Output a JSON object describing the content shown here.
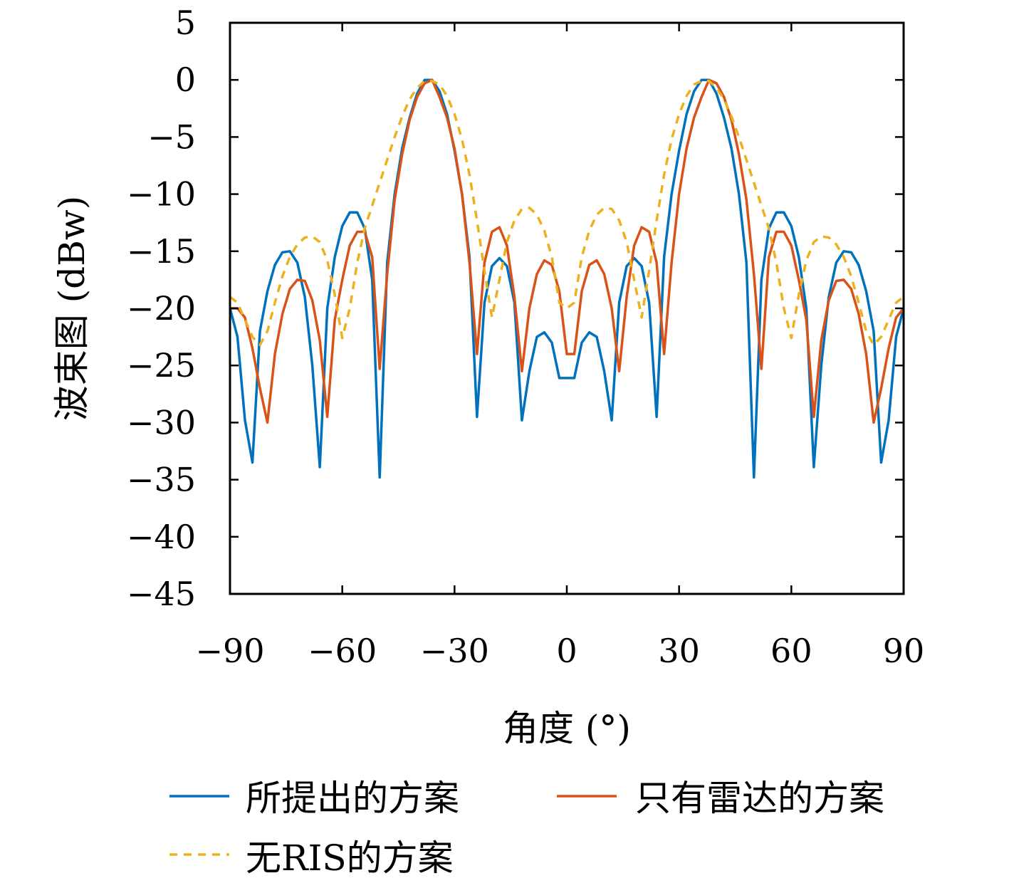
{
  "chart_data": {
    "type": "line",
    "xlabel": "角度 (°)",
    "ylabel": "波束图 (dBw)",
    "xlim": [
      -90,
      90
    ],
    "ylim": [
      -45,
      5
    ],
    "xticks": [
      -90,
      -60,
      -30,
      0,
      30,
      60,
      90
    ],
    "xtick_labels": [
      "−90",
      "−60",
      "−30",
      "0",
      "30",
      "60",
      "90"
    ],
    "yticks": [
      5,
      0,
      -5,
      -10,
      -15,
      -20,
      -25,
      -30,
      -35,
      -40,
      -45
    ],
    "ytick_labels": [
      "5",
      "0",
      "−5",
      "−10",
      "−15",
      "−20",
      "−25",
      "−30",
      "−35",
      "−40",
      "−45"
    ],
    "grid": false,
    "legend_position": "bottom",
    "series": [
      {
        "name": "所提出的方案",
        "color": "#0072BD",
        "dash": "solid",
        "points": [
          [
            -90,
            -20
          ],
          [
            -88,
            -22.5
          ],
          [
            -86,
            -29.8
          ],
          [
            -84,
            -33.5
          ],
          [
            -82,
            -22
          ],
          [
            -80,
            -18.5
          ],
          [
            -78,
            -16.2
          ],
          [
            -76,
            -15.1
          ],
          [
            -74,
            -15
          ],
          [
            -72,
            -16
          ],
          [
            -70,
            -19
          ],
          [
            -68,
            -25
          ],
          [
            -66,
            -33.9
          ],
          [
            -64,
            -20
          ],
          [
            -62,
            -15.5
          ],
          [
            -60,
            -12.8
          ],
          [
            -58,
            -11.6
          ],
          [
            -56,
            -11.6
          ],
          [
            -54,
            -13
          ],
          [
            -52,
            -17.5
          ],
          [
            -50,
            -34.8
          ],
          [
            -48,
            -16
          ],
          [
            -46,
            -10
          ],
          [
            -44,
            -6
          ],
          [
            -42,
            -3.3
          ],
          [
            -40,
            -1.2
          ],
          [
            -38,
            0
          ],
          [
            -36,
            0
          ],
          [
            -34,
            -1
          ],
          [
            -32,
            -3
          ],
          [
            -30,
            -6.2
          ],
          [
            -28,
            -10
          ],
          [
            -26,
            -15.5
          ],
          [
            -24,
            -29.5
          ],
          [
            -22,
            -19.5
          ],
          [
            -20,
            -16.3
          ],
          [
            -18,
            -15.6
          ],
          [
            -16,
            -16.3
          ],
          [
            -14,
            -19.5
          ],
          [
            -12,
            -29.8
          ],
          [
            -10,
            -25.5
          ],
          [
            -8,
            -22.5
          ],
          [
            -6,
            -22.1
          ],
          [
            -4,
            -23
          ],
          [
            -2,
            -26.1
          ],
          [
            0,
            -26.1
          ],
          [
            2,
            -26.1
          ],
          [
            4,
            -23
          ],
          [
            6,
            -22.1
          ],
          [
            8,
            -22.5
          ],
          [
            10,
            -25.5
          ],
          [
            12,
            -29.8
          ],
          [
            14,
            -19.5
          ],
          [
            16,
            -16.3
          ],
          [
            18,
            -15.6
          ],
          [
            20,
            -16.3
          ],
          [
            22,
            -19.5
          ],
          [
            24,
            -29.5
          ],
          [
            26,
            -15.5
          ],
          [
            28,
            -10
          ],
          [
            30,
            -6.2
          ],
          [
            32,
            -3
          ],
          [
            34,
            -1
          ],
          [
            36,
            0
          ],
          [
            38,
            0
          ],
          [
            40,
            -1.2
          ],
          [
            42,
            -3.3
          ],
          [
            44,
            -6
          ],
          [
            46,
            -10
          ],
          [
            48,
            -16
          ],
          [
            50,
            -34.8
          ],
          [
            52,
            -17.5
          ],
          [
            54,
            -13
          ],
          [
            56,
            -11.6
          ],
          [
            58,
            -11.6
          ],
          [
            60,
            -12.8
          ],
          [
            62,
            -15.5
          ],
          [
            64,
            -20
          ],
          [
            66,
            -33.9
          ],
          [
            68,
            -25
          ],
          [
            70,
            -19
          ],
          [
            72,
            -16
          ],
          [
            74,
            -15
          ],
          [
            76,
            -15.1
          ],
          [
            78,
            -16.2
          ],
          [
            80,
            -18.5
          ],
          [
            82,
            -22
          ],
          [
            84,
            -33.5
          ],
          [
            86,
            -29.8
          ],
          [
            88,
            -22.5
          ],
          [
            90,
            -20
          ]
        ]
      },
      {
        "name": "只有雷达的方案",
        "color": "#D95319",
        "dash": "solid",
        "points": [
          [
            -90,
            -20
          ],
          [
            -88,
            -20
          ],
          [
            -86,
            -20.8
          ],
          [
            -84,
            -23.5
          ],
          [
            -82,
            -27
          ],
          [
            -80,
            -30
          ],
          [
            -78,
            -24
          ],
          [
            -76,
            -20.5
          ],
          [
            -74,
            -18.3
          ],
          [
            -72,
            -17.5
          ],
          [
            -70,
            -17.6
          ],
          [
            -68,
            -19.3
          ],
          [
            -66,
            -22.8
          ],
          [
            -64,
            -29.5
          ],
          [
            -62,
            -21
          ],
          [
            -60,
            -17.5
          ],
          [
            -58,
            -14.5
          ],
          [
            -56,
            -13.3
          ],
          [
            -54,
            -13.3
          ],
          [
            -52,
            -15.5
          ],
          [
            -50,
            -25.3
          ],
          [
            -48,
            -17
          ],
          [
            -46,
            -10.5
          ],
          [
            -44,
            -6.5
          ],
          [
            -42,
            -3.5
          ],
          [
            -40,
            -1.5
          ],
          [
            -38,
            -0.3
          ],
          [
            -36,
            0
          ],
          [
            -34,
            -1.5
          ],
          [
            -32,
            -3.3
          ],
          [
            -30,
            -6
          ],
          [
            -28,
            -10
          ],
          [
            -26,
            -16
          ],
          [
            -24,
            -24
          ],
          [
            -22,
            -16
          ],
          [
            -20,
            -13.3
          ],
          [
            -18,
            -12.9
          ],
          [
            -16,
            -14.5
          ],
          [
            -14,
            -19
          ],
          [
            -12,
            -25.5
          ],
          [
            -10,
            -20
          ],
          [
            -8,
            -17
          ],
          [
            -6,
            -15.8
          ],
          [
            -4,
            -16.2
          ],
          [
            -2,
            -18.5
          ],
          [
            0,
            -24
          ],
          [
            2,
            -24
          ],
          [
            4,
            -18.5
          ],
          [
            6,
            -16.2
          ],
          [
            8,
            -15.8
          ],
          [
            10,
            -17
          ],
          [
            12,
            -20
          ],
          [
            14,
            -25.5
          ],
          [
            16,
            -19
          ],
          [
            18,
            -14.5
          ],
          [
            20,
            -12.9
          ],
          [
            22,
            -13.3
          ],
          [
            24,
            -16
          ],
          [
            26,
            -24
          ],
          [
            28,
            -16
          ],
          [
            30,
            -10
          ],
          [
            32,
            -6
          ],
          [
            34,
            -3.3
          ],
          [
            36,
            -1.5
          ],
          [
            38,
            0
          ],
          [
            40,
            -0.3
          ],
          [
            42,
            -1.5
          ],
          [
            44,
            -3.5
          ],
          [
            46,
            -6.5
          ],
          [
            48,
            -10.5
          ],
          [
            50,
            -17
          ],
          [
            52,
            -25.3
          ],
          [
            54,
            -15.5
          ],
          [
            56,
            -13.3
          ],
          [
            58,
            -13.3
          ],
          [
            60,
            -14.5
          ],
          [
            62,
            -17.5
          ],
          [
            64,
            -21
          ],
          [
            66,
            -29.5
          ],
          [
            68,
            -22.8
          ],
          [
            70,
            -19.3
          ],
          [
            72,
            -17.6
          ],
          [
            74,
            -17.5
          ],
          [
            76,
            -18.3
          ],
          [
            78,
            -20.5
          ],
          [
            80,
            -24
          ],
          [
            82,
            -30
          ],
          [
            84,
            -27
          ],
          [
            86,
            -23.5
          ],
          [
            88,
            -20.8
          ],
          [
            90,
            -20
          ]
        ]
      },
      {
        "name": "无RIS的方案",
        "color": "#EDB120",
        "dash": "dashed",
        "points": [
          [
            -90,
            -19
          ],
          [
            -88,
            -19.5
          ],
          [
            -86,
            -21
          ],
          [
            -84,
            -22.5
          ],
          [
            -82,
            -23.2
          ],
          [
            -80,
            -22
          ],
          [
            -78,
            -19.5
          ],
          [
            -76,
            -17.2
          ],
          [
            -74,
            -15.5
          ],
          [
            -72,
            -14.4
          ],
          [
            -70,
            -13.8
          ],
          [
            -68,
            -13.7
          ],
          [
            -66,
            -14.2
          ],
          [
            -64,
            -15.8
          ],
          [
            -62,
            -18.8
          ],
          [
            -60,
            -22.6
          ],
          [
            -58,
            -20
          ],
          [
            -56,
            -16
          ],
          [
            -54,
            -13
          ],
          [
            -52,
            -11
          ],
          [
            -50,
            -9
          ],
          [
            -48,
            -7
          ],
          [
            -46,
            -5
          ],
          [
            -44,
            -3.2
          ],
          [
            -42,
            -1.7
          ],
          [
            -40,
            -0.7
          ],
          [
            -38,
            -0.1
          ],
          [
            -36,
            -0.1
          ],
          [
            -34,
            -0.4
          ],
          [
            -32,
            -1.4
          ],
          [
            -30,
            -3
          ],
          [
            -28,
            -5.2
          ],
          [
            -26,
            -8.3
          ],
          [
            -24,
            -12.3
          ],
          [
            -22,
            -16.7
          ],
          [
            -20,
            -20.8
          ],
          [
            -18,
            -17.5
          ],
          [
            -16,
            -14.2
          ],
          [
            -14,
            -12.3
          ],
          [
            -12,
            -11.3
          ],
          [
            -10,
            -11.2
          ],
          [
            -8,
            -11.8
          ],
          [
            -6,
            -13.2
          ],
          [
            -4,
            -15.5
          ],
          [
            -2,
            -19.5
          ],
          [
            0,
            -20
          ],
          [
            2,
            -19.5
          ],
          [
            4,
            -15.5
          ],
          [
            6,
            -13.2
          ],
          [
            8,
            -11.8
          ],
          [
            10,
            -11.2
          ],
          [
            12,
            -11.3
          ],
          [
            14,
            -12.3
          ],
          [
            16,
            -14.2
          ],
          [
            18,
            -17.5
          ],
          [
            20,
            -20.8
          ],
          [
            22,
            -16.7
          ],
          [
            24,
            -12.3
          ],
          [
            26,
            -8.3
          ],
          [
            28,
            -5.2
          ],
          [
            30,
            -3
          ],
          [
            32,
            -1.4
          ],
          [
            34,
            -0.4
          ],
          [
            36,
            -0.1
          ],
          [
            38,
            -0.1
          ],
          [
            40,
            -0.7
          ],
          [
            42,
            -1.7
          ],
          [
            44,
            -3.2
          ],
          [
            46,
            -5
          ],
          [
            48,
            -7
          ],
          [
            50,
            -9
          ],
          [
            52,
            -11
          ],
          [
            54,
            -13
          ],
          [
            56,
            -16
          ],
          [
            58,
            -20
          ],
          [
            60,
            -22.6
          ],
          [
            62,
            -18.8
          ],
          [
            64,
            -15.8
          ],
          [
            66,
            -14.2
          ],
          [
            68,
            -13.7
          ],
          [
            70,
            -13.8
          ],
          [
            72,
            -14.4
          ],
          [
            74,
            -15.5
          ],
          [
            76,
            -17.2
          ],
          [
            78,
            -19.5
          ],
          [
            80,
            -22
          ],
          [
            82,
            -23.2
          ],
          [
            84,
            -22.5
          ],
          [
            86,
            -21
          ],
          [
            88,
            -19.5
          ],
          [
            90,
            -19
          ]
        ]
      }
    ]
  }
}
